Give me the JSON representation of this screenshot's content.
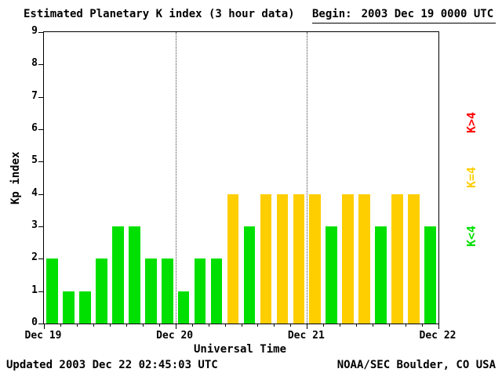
{
  "header": {
    "title": "Estimated Planetary K index (3 hour data)",
    "begin_label": "Begin:",
    "begin_value": "2003 Dec 19 0000 UTC"
  },
  "footer": {
    "updated": "Updated 2003 Dec 22 02:45:03 UTC",
    "source": "NOAA/SEC Boulder, CO USA"
  },
  "legend": [
    {
      "label": "K>4",
      "color": "#ff0000"
    },
    {
      "label": "K=4",
      "color": "#ffce00"
    },
    {
      "label": "K<4",
      "color": "#00e000"
    }
  ],
  "chart_data": {
    "type": "bar",
    "title": "Estimated Planetary K index (3 hour data)",
    "xlabel": "Universal Time",
    "ylabel": "Kp index",
    "ylim": [
      0,
      9
    ],
    "x_tick_labels": [
      "Dec 19",
      "Dec 20",
      "Dec 21",
      "Dec 22"
    ],
    "bars_per_day": 8,
    "interval_hours": 3,
    "values": [
      2,
      1,
      1,
      2,
      3,
      3,
      2,
      2,
      1,
      2,
      2,
      4,
      3,
      4,
      4,
      4,
      4,
      3,
      4,
      4,
      3,
      4,
      4,
      3
    ],
    "colors": {
      "below4": "#00e000",
      "equal4": "#ffce00",
      "above4": "#ff0000"
    },
    "grid": "dotted vertical lines at day boundaries",
    "legend_position": "right"
  }
}
